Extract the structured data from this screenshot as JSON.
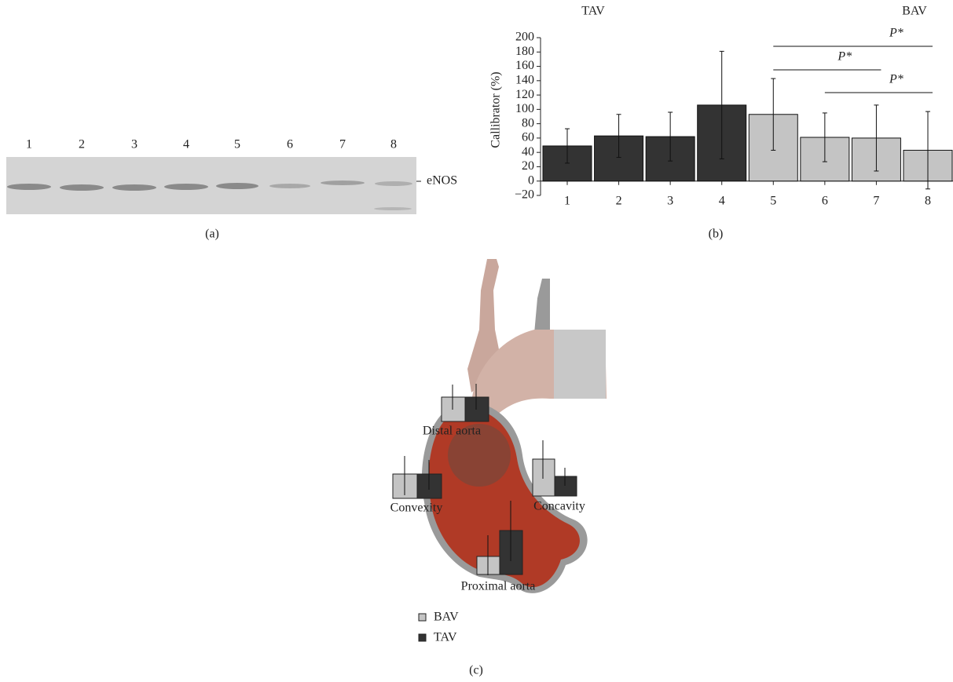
{
  "chart_data": {
    "type": "bar",
    "y_label": "Callibrator (%)",
    "categories": [
      "1",
      "2",
      "3",
      "4",
      "5",
      "6",
      "7",
      "8"
    ],
    "values": [
      49,
      63,
      62,
      106,
      93,
      61,
      60,
      43
    ],
    "errors": [
      24,
      30,
      34,
      75,
      50,
      34,
      46,
      54
    ],
    "colors": [
      "#333333",
      "#333333",
      "#333333",
      "#333333",
      "#c4c4c4",
      "#c4c4c4",
      "#c4c4c4",
      "#c4c4c4"
    ],
    "groups": [
      "TAV",
      "BAV"
    ],
    "significance": [
      {
        "from": "5",
        "to": "8",
        "label": "P*"
      },
      {
        "from": "5",
        "to": "7",
        "label": "P*"
      },
      {
        "from": "6",
        "to": "8",
        "label": "P*"
      }
    ],
    "ylim": [
      -20,
      200
    ],
    "yticks": [
      {
        "value": -20,
        "label": "−20"
      },
      0,
      20,
      40,
      60,
      80,
      100,
      120,
      140,
      160,
      180,
      200
    ]
  },
  "panel_a": {
    "lanes": [
      "1",
      "2",
      "3",
      "4",
      "5",
      "6",
      "7",
      "8"
    ],
    "band": "eNOS",
    "label": "(a)"
  },
  "panel_b": {
    "label": "(b)"
  },
  "panel_c": {
    "regions": [
      "Distal aorta",
      "Convexity",
      "Concavity",
      "Proximal aorta"
    ],
    "legend": [
      "BAV",
      "TAV"
    ],
    "label": "(c)"
  }
}
